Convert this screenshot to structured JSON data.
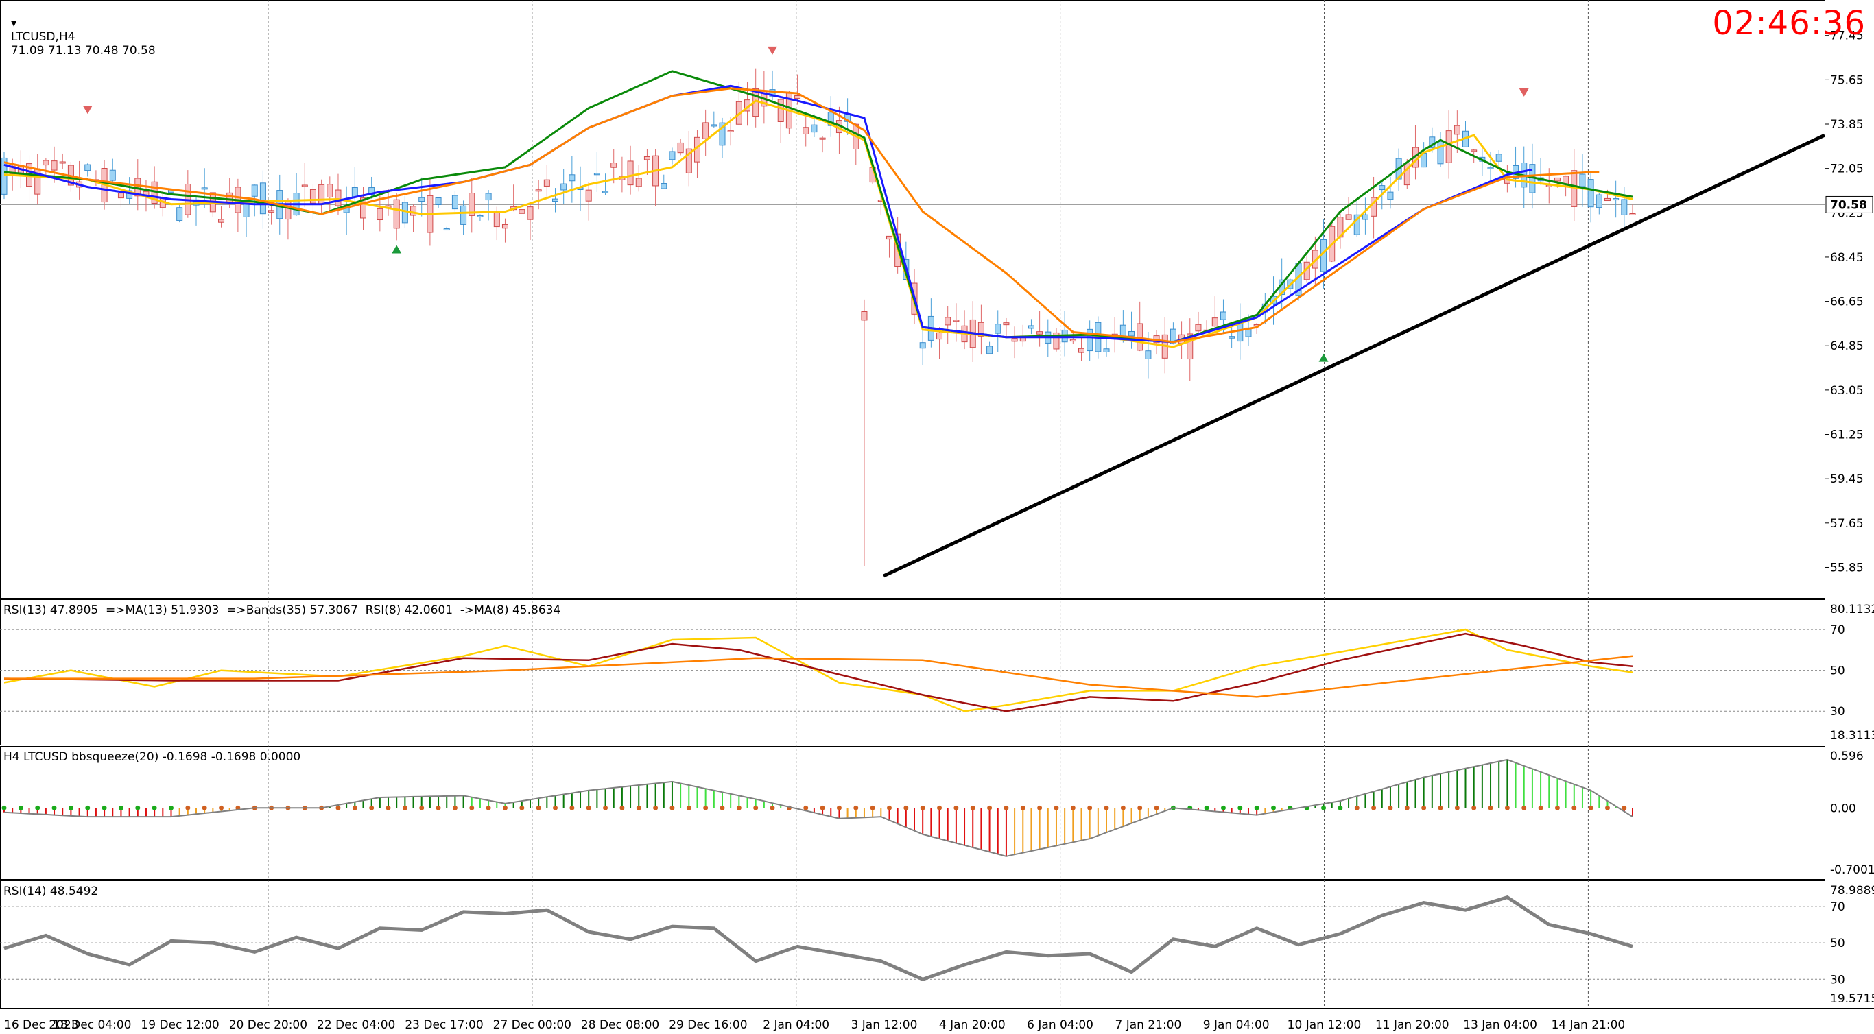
{
  "header": {
    "symbol_tf": "LTCUSD,H4",
    "ohlc": "71.09 71.13 70.48 70.58",
    "timer": "02:46:36"
  },
  "chart_data": [
    {
      "type": "candlestick",
      "symbol": "LTCUSD",
      "timeframe": "H4",
      "ylim": [
        55.0,
        78.5
      ],
      "y_ticks": [
        "77.45",
        "75.65",
        "73.85",
        "72.05",
        "70.25",
        "68.45",
        "66.65",
        "64.85",
        "63.05",
        "61.25",
        "59.45",
        "57.65",
        "55.85"
      ],
      "last_price": "70.58",
      "x_ticks": [
        "16 Dec 2023",
        "18 Dec 04:00",
        "19 Dec 12:00",
        "20 Dec 20:00",
        "22 Dec 04:00",
        "23 Dec 17:00",
        "27 Dec 00:00",
        "28 Dec 08:00",
        "29 Dec 16:00",
        "2 Jan 04:00",
        "3 Jan 12:00",
        "4 Jan 20:00",
        "6 Jan 04:00",
        "7 Jan 21:00",
        "9 Jan 04:00",
        "10 Jan 12:00",
        "11 Jan 20:00",
        "13 Jan 04:00",
        "14 Jan 21:00"
      ],
      "trendline": [
        [
          104,
          55.5
        ],
        [
          195,
          73.4
        ]
      ],
      "moving_averages": {
        "ma_fast_yellow": [
          [
            0,
            71.8
          ],
          [
            10,
            71.6
          ],
          [
            20,
            70.6
          ],
          [
            30,
            70.7
          ],
          [
            40,
            70.8
          ],
          [
            50,
            70.2
          ],
          [
            60,
            70.3
          ],
          [
            70,
            71.4
          ],
          [
            80,
            72.1
          ],
          [
            90,
            74.8
          ],
          [
            98,
            74.0
          ],
          [
            103,
            73.2
          ],
          [
            110,
            65.5
          ],
          [
            120,
            65.2
          ],
          [
            130,
            65.3
          ],
          [
            140,
            64.8
          ],
          [
            150,
            66.0
          ],
          [
            160,
            69.3
          ],
          [
            170,
            72.7
          ],
          [
            176,
            73.4
          ],
          [
            180,
            71.6
          ],
          [
            190,
            71.2
          ],
          [
            195,
            70.8
          ]
        ],
        "ma_mid_green": [
          [
            0,
            71.9
          ],
          [
            10,
            71.6
          ],
          [
            20,
            71.0
          ],
          [
            30,
            70.7
          ],
          [
            38,
            70.2
          ],
          [
            45,
            71.0
          ],
          [
            50,
            71.6
          ],
          [
            60,
            72.1
          ],
          [
            70,
            74.5
          ],
          [
            80,
            76.0
          ],
          [
            90,
            75.0
          ],
          [
            100,
            73.8
          ],
          [
            103,
            73.3
          ],
          [
            110,
            65.6
          ],
          [
            120,
            65.2
          ],
          [
            130,
            65.3
          ],
          [
            140,
            65.0
          ],
          [
            150,
            66.1
          ],
          [
            160,
            70.3
          ],
          [
            170,
            72.8
          ],
          [
            172,
            73.2
          ],
          [
            180,
            71.9
          ],
          [
            190,
            71.2
          ],
          [
            195,
            70.9
          ]
        ],
        "ma_slow_blue": [
          [
            0,
            72.2
          ],
          [
            10,
            71.3
          ],
          [
            20,
            70.8
          ],
          [
            30,
            70.6
          ],
          [
            38,
            70.6
          ],
          [
            45,
            71.1
          ],
          [
            55,
            71.5
          ],
          [
            63,
            72.2
          ],
          [
            70,
            73.7
          ],
          [
            80,
            75.0
          ],
          [
            87,
            75.4
          ],
          [
            95,
            74.8
          ],
          [
            103,
            74.1
          ],
          [
            110,
            65.6
          ],
          [
            120,
            65.2
          ],
          [
            130,
            65.2
          ],
          [
            140,
            65.0
          ],
          [
            150,
            66.0
          ],
          [
            160,
            68.2
          ],
          [
            170,
            70.4
          ],
          [
            180,
            71.8
          ],
          [
            183,
            72.0
          ]
        ],
        "ma_orange": [
          [
            0,
            72.3
          ],
          [
            10,
            71.6
          ],
          [
            20,
            71.2
          ],
          [
            30,
            70.8
          ],
          [
            38,
            70.2
          ],
          [
            45,
            70.8
          ],
          [
            55,
            71.5
          ],
          [
            63,
            72.2
          ],
          [
            70,
            73.7
          ],
          [
            80,
            75.0
          ],
          [
            87,
            75.3
          ],
          [
            95,
            75.1
          ],
          [
            100,
            74.2
          ],
          [
            103,
            73.6
          ],
          [
            110,
            70.3
          ],
          [
            120,
            67.8
          ],
          [
            128,
            65.4
          ],
          [
            135,
            65.2
          ],
          [
            140,
            65.0
          ],
          [
            150,
            65.6
          ],
          [
            160,
            68.0
          ],
          [
            170,
            70.4
          ],
          [
            180,
            71.7
          ],
          [
            190,
            71.9
          ],
          [
            191,
            71.9
          ]
        ]
      }
    },
    {
      "type": "line",
      "title": "RSI(13) 47.8905  =>MA(13) 51.9303  =>Bands(35) 57.3067  RSI(8) 42.0601  ->MA(8) 45.8634",
      "ylim": [
        18.3113,
        80.1132
      ],
      "y_ticks": [
        "80.1132",
        "70",
        "50",
        "30",
        "18.3113"
      ],
      "levels": [
        70,
        50,
        30
      ],
      "series": [
        {
          "color": "#ffd000",
          "values": [
            [
              0,
              44
            ],
            [
              8,
              50
            ],
            [
              18,
              42
            ],
            [
              26,
              50
            ],
            [
              40,
              47
            ],
            [
              55,
              57
            ],
            [
              60,
              62
            ],
            [
              70,
              52
            ],
            [
              80,
              65
            ],
            [
              90,
              66
            ],
            [
              100,
              44
            ],
            [
              110,
              38
            ],
            [
              115,
              30
            ],
            [
              120,
              33
            ],
            [
              130,
              40
            ],
            [
              140,
              40
            ],
            [
              150,
              52
            ],
            [
              160,
              59
            ],
            [
              175,
              70
            ],
            [
              180,
              60
            ],
            [
              190,
              52
            ],
            [
              195,
              49
            ]
          ]
        },
        {
          "color": "#a01010",
          "values": [
            [
              0,
              46
            ],
            [
              20,
              45
            ],
            [
              40,
              45
            ],
            [
              55,
              56
            ],
            [
              70,
              55
            ],
            [
              80,
              63
            ],
            [
              88,
              60
            ],
            [
              100,
              48
            ],
            [
              110,
              38
            ],
            [
              120,
              30
            ],
            [
              130,
              37
            ],
            [
              140,
              35
            ],
            [
              150,
              44
            ],
            [
              160,
              55
            ],
            [
              175,
              68
            ],
            [
              182,
              62
            ],
            [
              190,
              54
            ],
            [
              195,
              52
            ]
          ]
        },
        {
          "color": "#ff8000",
          "values": [
            [
              0,
              46
            ],
            [
              30,
              46
            ],
            [
              60,
              50
            ],
            [
              90,
              56
            ],
            [
              110,
              55
            ],
            [
              130,
              43
            ],
            [
              150,
              37
            ],
            [
              170,
              46
            ],
            [
              195,
              57
            ]
          ]
        }
      ]
    },
    {
      "type": "bar",
      "title": "H4 LTCUSD bbsqueeze(20) -0.1698 -0.1698 0.0000",
      "ylim": [
        -0.7001,
        0.596
      ],
      "y_ticks": [
        "0.596",
        "0.00",
        "-0.7001"
      ],
      "histogram": [
        [
          0,
          -0.05
        ],
        [
          10,
          -0.1
        ],
        [
          20,
          -0.1
        ],
        [
          30,
          0.0
        ],
        [
          38,
          0.0
        ],
        [
          45,
          0.12
        ],
        [
          55,
          0.14
        ],
        [
          60,
          0.05
        ],
        [
          70,
          0.2
        ],
        [
          80,
          0.3
        ],
        [
          90,
          0.1
        ],
        [
          100,
          -0.12
        ],
        [
          105,
          -0.1
        ],
        [
          110,
          -0.3
        ],
        [
          120,
          -0.55
        ],
        [
          130,
          -0.35
        ],
        [
          140,
          0.0
        ],
        [
          150,
          -0.08
        ],
        [
          160,
          0.08
        ],
        [
          170,
          0.35
        ],
        [
          180,
          0.55
        ],
        [
          190,
          0.2
        ],
        [
          195,
          -0.1
        ]
      ]
    },
    {
      "type": "line",
      "title": "RSI(14) 48.5492",
      "ylim": [
        19.5715,
        78.9889
      ],
      "y_ticks": [
        "78.9889",
        "70",
        "50",
        "30",
        "19.5715"
      ],
      "levels": [
        70,
        50,
        30
      ],
      "series": [
        {
          "color": "#808080",
          "values": [
            [
              0,
              47
            ],
            [
              5,
              54
            ],
            [
              10,
              44
            ],
            [
              15,
              38
            ],
            [
              20,
              51
            ],
            [
              25,
              50
            ],
            [
              30,
              45
            ],
            [
              35,
              53
            ],
            [
              40,
              47
            ],
            [
              45,
              58
            ],
            [
              50,
              57
            ],
            [
              55,
              67
            ],
            [
              60,
              66
            ],
            [
              65,
              68
            ],
            [
              70,
              56
            ],
            [
              75,
              52
            ],
            [
              80,
              59
            ],
            [
              85,
              58
            ],
            [
              90,
              40
            ],
            [
              95,
              48
            ],
            [
              100,
              44
            ],
            [
              105,
              40
            ],
            [
              110,
              30
            ],
            [
              115,
              38
            ],
            [
              120,
              45
            ],
            [
              125,
              43
            ],
            [
              130,
              44
            ],
            [
              135,
              34
            ],
            [
              140,
              52
            ],
            [
              145,
              48
            ],
            [
              150,
              58
            ],
            [
              155,
              49
            ],
            [
              160,
              55
            ],
            [
              165,
              65
            ],
            [
              170,
              72
            ],
            [
              175,
              68
            ],
            [
              180,
              75
            ],
            [
              185,
              60
            ],
            [
              190,
              55
            ],
            [
              195,
              48
            ]
          ]
        }
      ]
    }
  ]
}
